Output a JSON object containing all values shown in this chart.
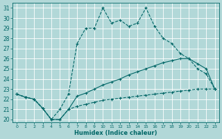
{
  "xlabel": "Humidex (Indice chaleur)",
  "bg_color": "#b2d8d8",
  "grid_color": "#d0e8e8",
  "line_color": "#006666",
  "xlim": [
    -0.5,
    23.5
  ],
  "ylim": [
    19.7,
    31.5
  ],
  "yticks": [
    20,
    21,
    22,
    23,
    24,
    25,
    26,
    27,
    28,
    29,
    30,
    31
  ],
  "xticks": [
    0,
    1,
    2,
    3,
    4,
    5,
    6,
    7,
    8,
    9,
    10,
    11,
    12,
    13,
    14,
    15,
    16,
    17,
    18,
    19,
    20,
    21,
    22,
    23
  ],
  "s_dashed_x": [
    0,
    1,
    2,
    3,
    4,
    5,
    6,
    7,
    8,
    9,
    10,
    11,
    12,
    13,
    14,
    15,
    16,
    17,
    18,
    19,
    20,
    21,
    22,
    23
  ],
  "s_dashed_y": [
    22.5,
    22.2,
    22.0,
    21.1,
    20.0,
    20.0,
    21.0,
    21.3,
    21.5,
    21.7,
    21.9,
    22.0,
    22.1,
    22.2,
    22.3,
    22.4,
    22.5,
    22.6,
    22.7,
    22.8,
    22.9,
    23.0,
    23.0,
    23.0
  ],
  "s_lower_x": [
    0,
    1,
    2,
    3,
    4,
    5,
    6,
    7,
    8,
    9,
    10,
    11,
    12,
    13,
    14,
    15,
    16,
    17,
    18,
    19,
    20,
    21,
    22,
    23
  ],
  "s_lower_y": [
    22.5,
    22.2,
    22.0,
    21.1,
    20.0,
    20.0,
    21.0,
    22.3,
    22.6,
    23.0,
    23.4,
    23.7,
    24.0,
    24.4,
    24.7,
    25.0,
    25.3,
    25.6,
    25.8,
    26.0,
    26.0,
    25.5,
    25.0,
    23.0
  ],
  "s_upper_x": [
    0,
    1,
    2,
    3,
    4,
    5,
    6,
    7,
    8,
    9,
    10,
    11,
    12,
    13,
    14,
    15,
    16,
    17,
    18,
    19,
    20,
    21,
    22,
    23
  ],
  "s_upper_y": [
    22.5,
    22.2,
    22.0,
    21.1,
    20.0,
    21.0,
    22.5,
    27.5,
    29.0,
    29.0,
    31.0,
    29.5,
    29.8,
    29.2,
    29.5,
    31.0,
    29.2,
    28.0,
    27.5,
    26.5,
    26.0,
    25.0,
    24.5,
    23.0
  ]
}
